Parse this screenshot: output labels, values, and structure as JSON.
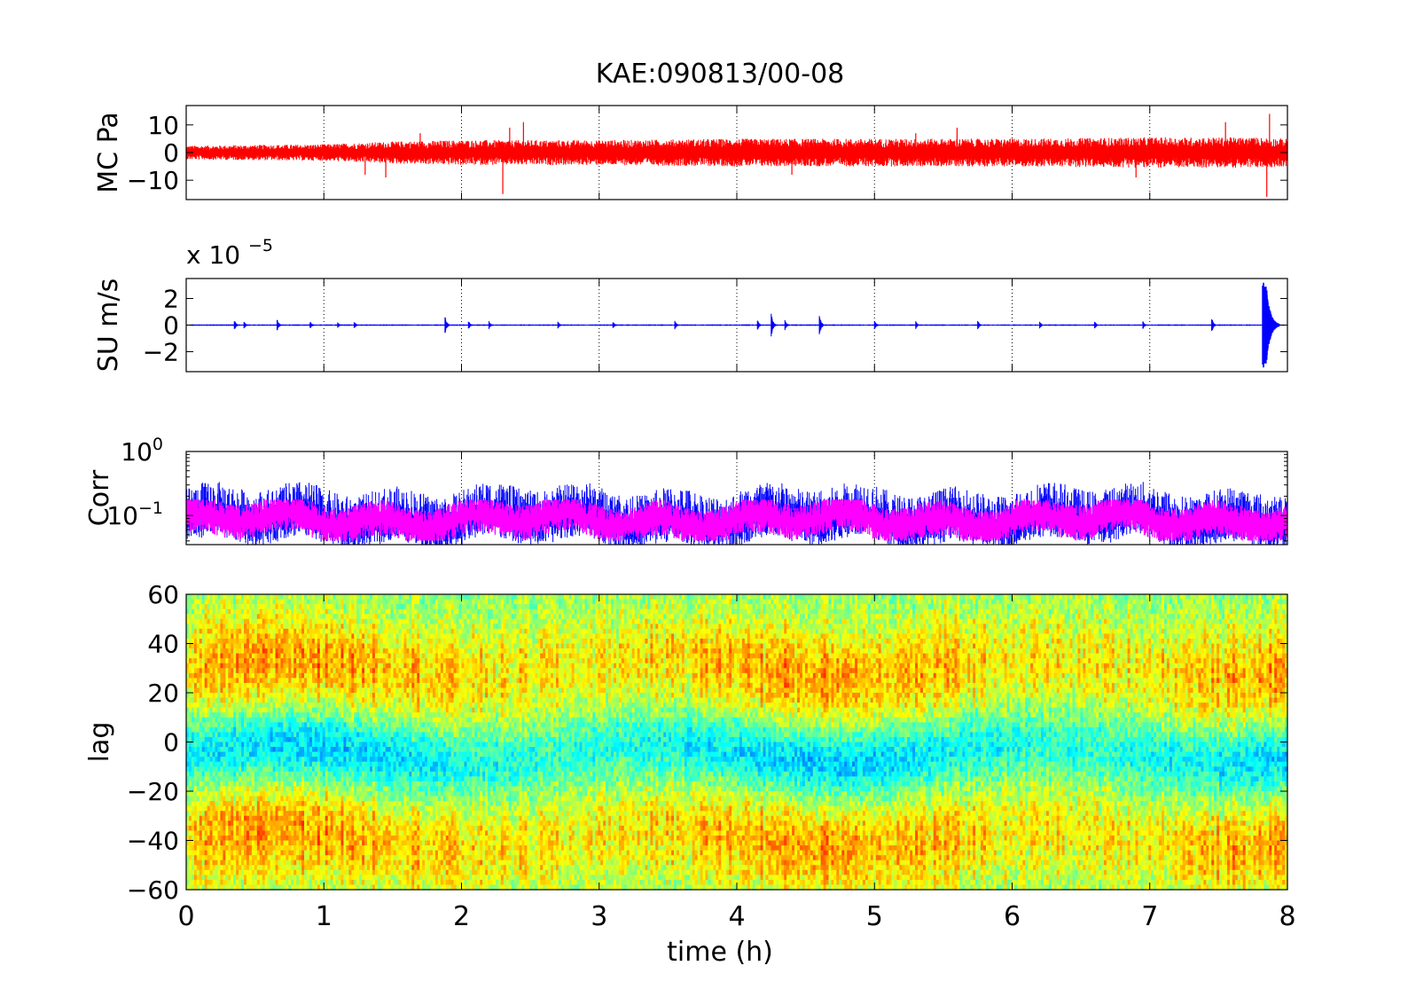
{
  "chart_data": {
    "title": "KAE:090813/00-08",
    "xlabel": "time (h)",
    "xlim": [
      0,
      8
    ],
    "xticks": [
      "0",
      "1",
      "2",
      "3",
      "4",
      "5",
      "6",
      "7",
      "8"
    ],
    "panels": [
      {
        "id": "mc",
        "type": "line",
        "ylabel": "MC Pa",
        "ylim": [
          -17,
          17
        ],
        "yticks": [
          {
            "value": 10,
            "label": "10"
          },
          {
            "value": 0,
            "label": "0"
          },
          {
            "value": -10,
            "label": "−10"
          }
        ],
        "grid": "vertical-dotted",
        "series": [
          {
            "color": "#ff0000",
            "noise_envelope_amplitude_vs_time": {
              "x": [
                0,
                1,
                1.5,
                2,
                3,
                4,
                5,
                6,
                7,
                7.8,
                8
              ],
              "y": [
                2.5,
                3,
                4,
                4.5,
                4.5,
                5,
                5,
                5,
                5.5,
                5.5,
                5
              ]
            },
            "spikes": [
              {
                "x": 1.3,
                "y": -8
              },
              {
                "x": 1.45,
                "y": -9
              },
              {
                "x": 1.7,
                "y": 7
              },
              {
                "x": 2.3,
                "y": -15
              },
              {
                "x": 2.45,
                "y": 11
              },
              {
                "x": 2.35,
                "y": 9
              },
              {
                "x": 4.4,
                "y": -8
              },
              {
                "x": 5.3,
                "y": 7
              },
              {
                "x": 5.6,
                "y": 9
              },
              {
                "x": 6.9,
                "y": -9
              },
              {
                "x": 7.55,
                "y": 11
              },
              {
                "x": 7.85,
                "y": -16
              },
              {
                "x": 7.87,
                "y": 14
              }
            ]
          }
        ]
      },
      {
        "id": "su",
        "type": "line",
        "ylabel": "SU m/s",
        "exponent_label": "x 10",
        "exponent": "−5",
        "ylim": [
          -3.5,
          3.5
        ],
        "yticks": [
          {
            "value": 2,
            "label": "2"
          },
          {
            "value": 0,
            "label": "0"
          },
          {
            "value": -2,
            "label": "−2"
          }
        ],
        "grid": "vertical-dotted",
        "series": [
          {
            "color": "#0000ff",
            "baseline_amplitude": 0.06,
            "events": [
              {
                "x": 0.35,
                "amp": 0.4
              },
              {
                "x": 0.42,
                "amp": 0.3
              },
              {
                "x": 0.66,
                "amp": 0.5
              },
              {
                "x": 0.9,
                "amp": 0.3
              },
              {
                "x": 1.1,
                "amp": 0.25
              },
              {
                "x": 1.22,
                "amp": 0.3
              },
              {
                "x": 1.88,
                "amp": 0.7
              },
              {
                "x": 2.05,
                "amp": 0.35
              },
              {
                "x": 2.2,
                "amp": 0.3
              },
              {
                "x": 2.7,
                "amp": 0.3
              },
              {
                "x": 3.1,
                "amp": 0.3
              },
              {
                "x": 3.55,
                "amp": 0.35
              },
              {
                "x": 4.15,
                "amp": 0.4
              },
              {
                "x": 4.25,
                "amp": 1.0
              },
              {
                "x": 4.35,
                "amp": 0.4
              },
              {
                "x": 4.6,
                "amp": 0.8
              },
              {
                "x": 5.0,
                "amp": 0.4
              },
              {
                "x": 5.3,
                "amp": 0.3
              },
              {
                "x": 5.75,
                "amp": 0.35
              },
              {
                "x": 6.2,
                "amp": 0.3
              },
              {
                "x": 6.6,
                "amp": 0.3
              },
              {
                "x": 6.95,
                "amp": 0.3
              },
              {
                "x": 7.45,
                "amp": 0.6
              },
              {
                "x": 7.82,
                "amp": 3.3
              }
            ]
          }
        ]
      },
      {
        "id": "corr",
        "type": "line",
        "ylabel": "Corr",
        "yscale": "log",
        "ylim": [
          0.035,
          1.0
        ],
        "yticks": [
          {
            "value": 1.0,
            "label": "10",
            "exp": "0"
          },
          {
            "value": 0.1,
            "label": "10",
            "exp": "−1"
          }
        ],
        "grid": "vertical-dotted",
        "series": [
          {
            "color": "#0000ff",
            "typical_center": 0.08,
            "typical_range": [
              0.035,
              0.25
            ]
          },
          {
            "color": "#ff00ff",
            "typical_center": 0.08,
            "typical_range": [
              0.045,
              0.16
            ]
          }
        ]
      },
      {
        "id": "lag",
        "type": "heatmap",
        "ylabel": "lag",
        "ylim": [
          -60,
          60
        ],
        "yticks": [
          {
            "value": 60,
            "label": "60"
          },
          {
            "value": 40,
            "label": "40"
          },
          {
            "value": 20,
            "label": "20"
          },
          {
            "value": 0,
            "label": "0"
          },
          {
            "value": -20,
            "label": "−20"
          },
          {
            "value": -40,
            "label": "−40"
          },
          {
            "value": -60,
            "label": "−60"
          }
        ],
        "colormap": "jet",
        "pattern": "low correlation (blue-cyan) band centered near lag -5 spanning about -20 to 10; higher values (yellow-red) at |lag| 20-50; cyan toward edges"
      }
    ]
  }
}
